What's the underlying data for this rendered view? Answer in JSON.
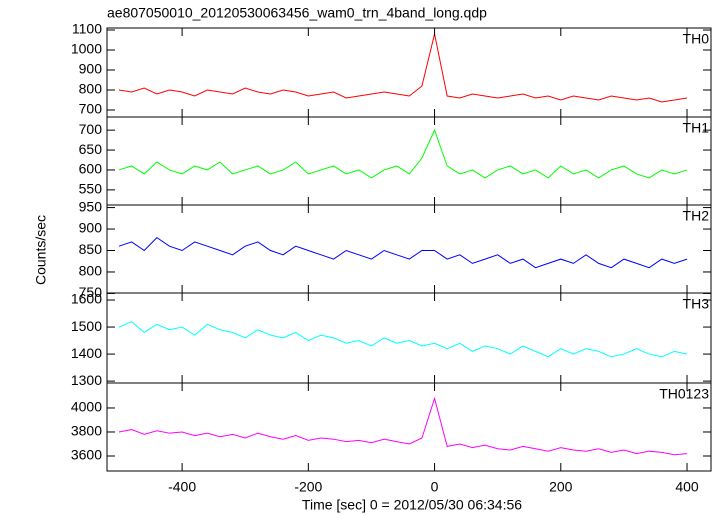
{
  "title": "ae807050010_20120530063456_wam0_trn_4band_long.qdp",
  "ylabel": "Counts/sec",
  "xlabel": "Time [sec] 0 = 2012/05/30 06:34:56",
  "chart_data": [
    {
      "type": "line",
      "label": "TH0",
      "color": "#ff0000",
      "x": [
        -500,
        -480,
        -460,
        -440,
        -420,
        -400,
        -380,
        -360,
        -340,
        -320,
        -300,
        -280,
        -260,
        -240,
        -220,
        -200,
        -180,
        -160,
        -140,
        -120,
        -100,
        -80,
        -60,
        -40,
        -20,
        0,
        20,
        40,
        60,
        80,
        100,
        120,
        140,
        160,
        180,
        200,
        220,
        240,
        260,
        280,
        300,
        320,
        340,
        360,
        380,
        400
      ],
      "values": [
        800,
        790,
        810,
        780,
        800,
        790,
        770,
        800,
        790,
        780,
        810,
        790,
        780,
        800,
        790,
        770,
        780,
        790,
        760,
        770,
        780,
        790,
        780,
        770,
        820,
        1080,
        770,
        760,
        780,
        770,
        760,
        770,
        780,
        760,
        770,
        750,
        770,
        760,
        750,
        770,
        760,
        750,
        760,
        740,
        750,
        760
      ],
      "xlim": [
        -519,
        438
      ],
      "xticks": [
        -400,
        -200,
        0,
        200,
        400
      ],
      "ylim": [
        665,
        1110
      ],
      "yticks": [
        700,
        800,
        900,
        1000,
        1100
      ]
    },
    {
      "type": "line",
      "label": "TH1",
      "color": "#00ff00",
      "x": [
        -500,
        -480,
        -460,
        -440,
        -420,
        -400,
        -380,
        -360,
        -340,
        -320,
        -300,
        -280,
        -260,
        -240,
        -220,
        -200,
        -180,
        -160,
        -140,
        -120,
        -100,
        -80,
        -60,
        -40,
        -20,
        0,
        20,
        40,
        60,
        80,
        100,
        120,
        140,
        160,
        180,
        200,
        220,
        240,
        260,
        280,
        300,
        320,
        340,
        360,
        380,
        400
      ],
      "values": [
        600,
        610,
        590,
        620,
        600,
        590,
        610,
        600,
        620,
        590,
        600,
        610,
        590,
        600,
        620,
        590,
        600,
        610,
        590,
        600,
        580,
        600,
        610,
        590,
        630,
        700,
        610,
        590,
        600,
        580,
        600,
        610,
        590,
        600,
        580,
        610,
        590,
        600,
        580,
        600,
        610,
        590,
        580,
        600,
        590,
        600
      ],
      "xlim": [
        -519,
        438
      ],
      "xticks": [
        -400,
        -200,
        0,
        200,
        400
      ],
      "ylim": [
        512,
        733
      ],
      "yticks": [
        550,
        600,
        650,
        700
      ]
    },
    {
      "type": "line",
      "label": "TH2",
      "color": "#0000ff",
      "x": [
        -500,
        -480,
        -460,
        -440,
        -420,
        -400,
        -380,
        -360,
        -340,
        -320,
        -300,
        -280,
        -260,
        -240,
        -220,
        -200,
        -180,
        -160,
        -140,
        -120,
        -100,
        -80,
        -60,
        -40,
        -20,
        0,
        20,
        40,
        60,
        80,
        100,
        120,
        140,
        160,
        180,
        200,
        220,
        240,
        260,
        280,
        300,
        320,
        340,
        360,
        380,
        400
      ],
      "values": [
        860,
        870,
        850,
        880,
        860,
        850,
        870,
        860,
        850,
        840,
        860,
        870,
        850,
        840,
        860,
        850,
        840,
        830,
        850,
        840,
        830,
        850,
        840,
        830,
        850,
        850,
        830,
        840,
        820,
        830,
        840,
        820,
        830,
        810,
        820,
        830,
        820,
        840,
        820,
        810,
        830,
        820,
        810,
        830,
        820,
        830
      ],
      "xlim": [
        -519,
        438
      ],
      "xticks": [
        -400,
        -200,
        0,
        200,
        400
      ],
      "ylim": [
        751,
        956
      ],
      "yticks": [
        750,
        800,
        850,
        900,
        950
      ]
    },
    {
      "type": "line",
      "label": "TH3",
      "color": "#00ffff",
      "x": [
        -500,
        -480,
        -460,
        -440,
        -420,
        -400,
        -380,
        -360,
        -340,
        -320,
        -300,
        -280,
        -260,
        -240,
        -220,
        -200,
        -180,
        -160,
        -140,
        -120,
        -100,
        -80,
        -60,
        -40,
        -20,
        0,
        20,
        40,
        60,
        80,
        100,
        120,
        140,
        160,
        180,
        200,
        220,
        240,
        260,
        280,
        300,
        320,
        340,
        360,
        380,
        400
      ],
      "values": [
        1500,
        1520,
        1480,
        1510,
        1490,
        1500,
        1470,
        1510,
        1490,
        1480,
        1460,
        1490,
        1470,
        1460,
        1480,
        1450,
        1470,
        1460,
        1440,
        1450,
        1430,
        1460,
        1440,
        1450,
        1430,
        1440,
        1420,
        1440,
        1410,
        1430,
        1420,
        1400,
        1430,
        1410,
        1390,
        1420,
        1400,
        1420,
        1410,
        1390,
        1400,
        1420,
        1400,
        1390,
        1410,
        1400
      ],
      "xlim": [
        -519,
        438
      ],
      "xticks": [
        -400,
        -200,
        0,
        200,
        400
      ],
      "ylim": [
        1293,
        1626
      ],
      "yticks": [
        1300,
        1400,
        1500,
        1600
      ]
    },
    {
      "type": "line",
      "label": "TH0123",
      "color": "#ff00ff",
      "x": [
        -500,
        -480,
        -460,
        -440,
        -420,
        -400,
        -380,
        -360,
        -340,
        -320,
        -300,
        -280,
        -260,
        -240,
        -220,
        -200,
        -180,
        -160,
        -140,
        -120,
        -100,
        -80,
        -60,
        -40,
        -20,
        0,
        20,
        40,
        60,
        80,
        100,
        120,
        140,
        160,
        180,
        200,
        220,
        240,
        260,
        280,
        300,
        320,
        340,
        360,
        380,
        400
      ],
      "values": [
        3800,
        3820,
        3780,
        3810,
        3790,
        3800,
        3770,
        3790,
        3760,
        3780,
        3750,
        3790,
        3760,
        3740,
        3770,
        3730,
        3750,
        3740,
        3720,
        3730,
        3710,
        3740,
        3720,
        3700,
        3750,
        4080,
        3680,
        3700,
        3670,
        3690,
        3660,
        3650,
        3680,
        3660,
        3640,
        3670,
        3650,
        3640,
        3660,
        3630,
        3650,
        3620,
        3640,
        3630,
        3610,
        3620
      ],
      "xlim": [
        -519,
        438
      ],
      "xticks": [
        -400,
        -200,
        0,
        200,
        400
      ],
      "ylim": [
        3475,
        4208
      ],
      "yticks": [
        3600,
        3800,
        4000
      ]
    }
  ]
}
